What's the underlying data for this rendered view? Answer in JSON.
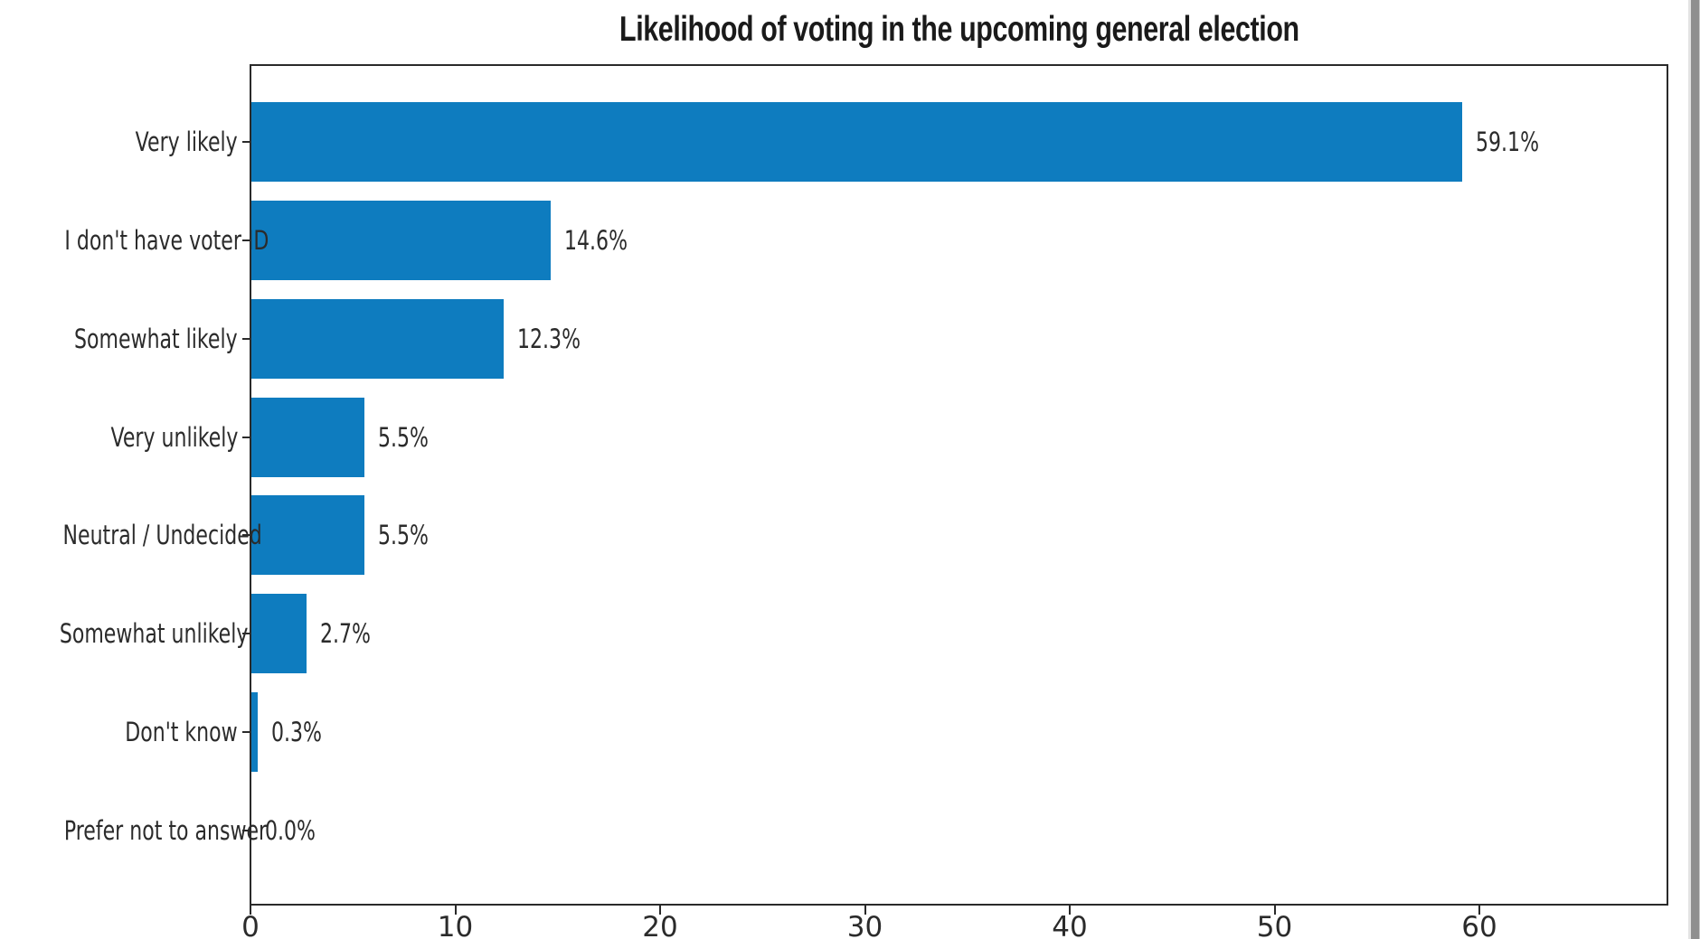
{
  "chart_data": {
    "type": "bar",
    "orientation": "horizontal",
    "title": "Likelihood of voting in the upcoming general election",
    "categories": [
      "Very likely",
      "I don't have voter ID",
      "Somewhat likely",
      "Very unlikely",
      "Neutral / Undecided",
      "Somewhat unlikely",
      "Don't know",
      "Prefer not to answer"
    ],
    "values": [
      59.1,
      14.6,
      12.3,
      5.5,
      5.5,
      2.7,
      0.3,
      0.0
    ],
    "value_labels": [
      "59.1%",
      "14.6%",
      "12.3%",
      "5.5%",
      "5.5%",
      "2.7%",
      "0.3%",
      "0.0%"
    ],
    "x_ticks": [
      0,
      10,
      20,
      30,
      40,
      50,
      60
    ],
    "xlim": [
      0,
      69.2
    ],
    "xlabel": "",
    "ylabel": "",
    "grid": false,
    "legend": null,
    "bar_color": "#0e7cbf",
    "spine_color": "#2a2a2a",
    "text_color": "#2b2b2b",
    "background_color": "#ffffff"
  }
}
